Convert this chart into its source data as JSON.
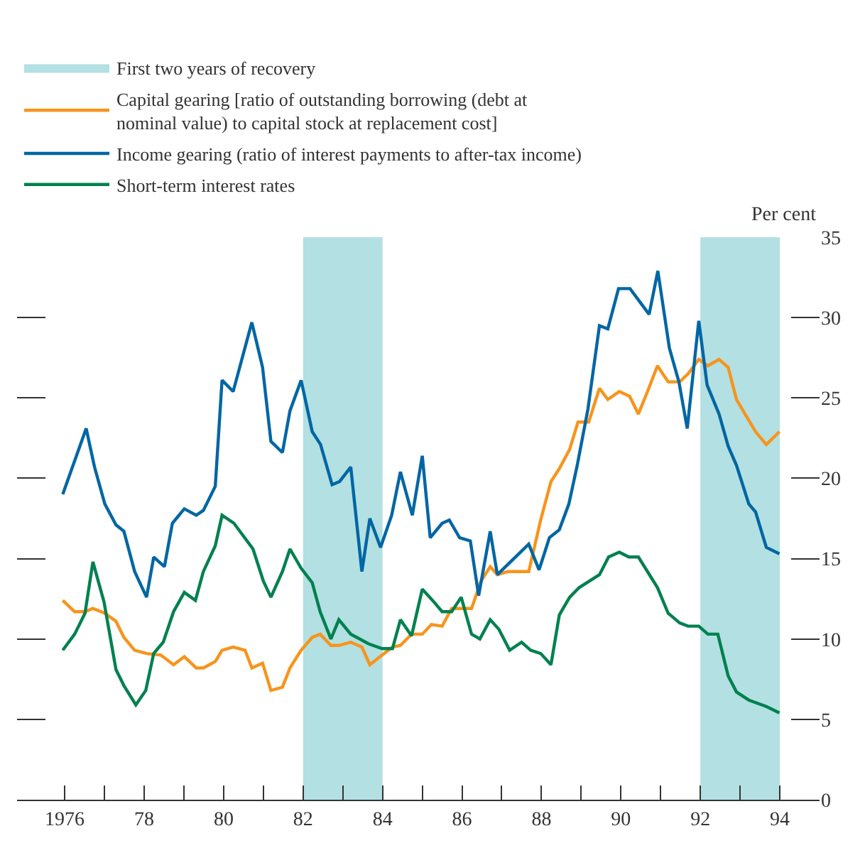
{
  "chart_data": {
    "type": "line",
    "ylabel": "Per cent",
    "legend": "top left",
    "xlim": [
      1974.8,
      1995.0
    ],
    "xticks": [
      {
        "value": 1976,
        "label": "1976"
      },
      {
        "value": 1977,
        "label": null
      },
      {
        "value": 1978,
        "label": "78"
      },
      {
        "value": 1979,
        "label": null
      },
      {
        "value": 1980,
        "label": "80"
      },
      {
        "value": 1981,
        "label": null
      },
      {
        "value": 1982,
        "label": "82"
      },
      {
        "value": 1983,
        "label": null
      },
      {
        "value": 1984,
        "label": "84"
      },
      {
        "value": 1985,
        "label": null
      },
      {
        "value": 1986,
        "label": "86"
      },
      {
        "value": 1987,
        "label": null
      },
      {
        "value": 1988,
        "label": "88"
      },
      {
        "value": 1989,
        "label": null
      },
      {
        "value": 1990,
        "label": "90"
      },
      {
        "value": 1991,
        "label": null
      },
      {
        "value": 1992,
        "label": "92"
      },
      {
        "value": 1993,
        "label": null
      },
      {
        "value": 1994,
        "label": "94"
      }
    ],
    "ylim": [
      0,
      35
    ],
    "yticks": [
      0,
      5,
      10,
      15,
      20,
      25,
      30,
      35
    ],
    "bands": [
      {
        "axis": "x",
        "from": 1982,
        "to": 1984,
        "label": "First two years of recovery",
        "color": "#b3e0e2"
      },
      {
        "axis": "x",
        "from": 1992,
        "to": 1994,
        "color": "#b3e0e2"
      }
    ],
    "series": [
      {
        "name": "Capital gearing [ratio of outstanding borrowing (debt at\nnominal value) to capital stock at replacement cost]",
        "color": "#f7941d",
        "x": [
          1975.95,
          1976.25,
          1976.51,
          1976.71,
          1977.01,
          1977.29,
          1977.49,
          1977.76,
          1978.06,
          1978.42,
          1978.74,
          1979.01,
          1979.31,
          1979.49,
          1979.79,
          1979.96,
          1980.24,
          1980.54,
          1980.71,
          1980.98,
          1981.19,
          1981.48,
          1981.67,
          1981.95,
          1982.23,
          1982.43,
          1982.7,
          1982.9,
          1983.2,
          1983.48,
          1983.68,
          1983.99,
          1984.25,
          1984.45,
          1984.73,
          1985.0,
          1985.23,
          1985.5,
          1985.74,
          1986.24,
          1986.48,
          1986.71,
          1986.89,
          1987.16,
          1987.68,
          1987.98,
          1988.24,
          1988.45,
          1988.71,
          1988.92,
          1989.19,
          1989.46,
          1989.67,
          1989.96,
          1990.22,
          1990.44,
          1990.67,
          1990.92,
          1991.19,
          1991.48,
          1991.69,
          1991.96,
          1992.19,
          1992.47,
          1992.7,
          1992.91,
          1993.22,
          1993.39,
          1993.66,
          1993.99
        ],
        "values": [
          12.4,
          11.7,
          11.7,
          11.9,
          11.6,
          11.1,
          10.1,
          9.3,
          9.1,
          9.0,
          8.4,
          8.9,
          8.2,
          8.2,
          8.6,
          9.3,
          9.5,
          9.3,
          8.2,
          8.5,
          6.8,
          7.0,
          8.2,
          9.3,
          10.1,
          10.3,
          9.6,
          9.6,
          9.8,
          9.5,
          8.4,
          9.0,
          9.5,
          9.6,
          10.3,
          10.3,
          10.9,
          10.8,
          11.9,
          11.9,
          13.6,
          14.5,
          14.0,
          14.2,
          14.2,
          17.4,
          19.8,
          20.6,
          21.8,
          23.5,
          23.5,
          25.6,
          24.9,
          25.4,
          25.1,
          24.0,
          25.4,
          27.0,
          26.0,
          26.0,
          26.5,
          27.4,
          27.0,
          27.4,
          26.9,
          24.9,
          23.6,
          22.9,
          22.1,
          22.9
        ]
      },
      {
        "name": "Income gearing (ratio of interest payments to after-tax income)",
        "color": "#0066a4",
        "x": [
          1975.95,
          1976.54,
          1976.75,
          1977.01,
          1977.29,
          1977.49,
          1977.76,
          1978.06,
          1978.24,
          1978.51,
          1978.71,
          1979.01,
          1979.31,
          1979.49,
          1979.79,
          1979.96,
          1980.24,
          1980.71,
          1980.98,
          1981.19,
          1981.48,
          1981.67,
          1981.95,
          1982.23,
          1982.44,
          1982.73,
          1982.92,
          1983.2,
          1983.48,
          1983.68,
          1983.95,
          1984.23,
          1984.45,
          1984.75,
          1985.0,
          1985.2,
          1985.5,
          1985.68,
          1985.94,
          1986.21,
          1986.42,
          1986.71,
          1986.89,
          1987.68,
          1987.94,
          1988.2,
          1988.45,
          1988.69,
          1988.9,
          1989.17,
          1989.46,
          1989.67,
          1989.94,
          1990.23,
          1990.71,
          1990.93,
          1991.22,
          1991.46,
          1991.67,
          1991.96,
          1992.17,
          1992.47,
          1992.7,
          1992.91,
          1993.22,
          1993.39,
          1993.66,
          1993.99
        ],
        "values": [
          19.0,
          23.1,
          20.7,
          18.4,
          17.1,
          16.7,
          14.2,
          12.6,
          15.1,
          14.5,
          17.2,
          18.1,
          17.7,
          18.0,
          19.5,
          26.1,
          25.4,
          29.7,
          26.9,
          22.3,
          21.6,
          24.2,
          26.1,
          22.9,
          22.1,
          19.6,
          19.8,
          20.7,
          14.2,
          17.5,
          15.7,
          17.7,
          20.4,
          17.7,
          21.4,
          16.3,
          17.2,
          17.4,
          16.3,
          16.1,
          12.7,
          16.7,
          14.0,
          15.9,
          14.3,
          16.3,
          16.8,
          18.4,
          20.8,
          24.3,
          29.5,
          29.3,
          31.8,
          31.8,
          30.2,
          32.9,
          28.1,
          26.0,
          23.1,
          29.8,
          25.8,
          24.0,
          22.0,
          20.8,
          18.4,
          17.9,
          15.7,
          15.3
        ]
      },
      {
        "name": "Short-term interest rates",
        "color": "#00814f",
        "x": [
          1975.95,
          1976.25,
          1976.51,
          1976.71,
          1976.99,
          1977.29,
          1977.49,
          1977.79,
          1978.04,
          1978.24,
          1978.48,
          1978.74,
          1979.01,
          1979.29,
          1979.49,
          1979.79,
          1979.96,
          1980.26,
          1980.74,
          1981.0,
          1981.19,
          1981.48,
          1981.67,
          1981.95,
          1982.23,
          1982.43,
          1982.7,
          1982.9,
          1983.2,
          1983.65,
          1983.99,
          1984.25,
          1984.45,
          1984.73,
          1985.0,
          1985.26,
          1985.5,
          1985.74,
          1985.98,
          1986.24,
          1986.45,
          1986.71,
          1986.93,
          1987.2,
          1987.5,
          1987.73,
          1987.98,
          1988.24,
          1988.45,
          1988.71,
          1988.95,
          1989.46,
          1989.69,
          1989.96,
          1990.2,
          1990.44,
          1990.92,
          1991.19,
          1991.48,
          1991.69,
          1991.96,
          1992.19,
          1992.44,
          1992.7,
          1992.91,
          1993.22,
          1993.66,
          1993.99
        ],
        "values": [
          9.3,
          10.3,
          11.6,
          14.8,
          12.3,
          8.1,
          7.1,
          5.9,
          6.8,
          9.1,
          9.8,
          11.7,
          12.9,
          12.4,
          14.2,
          15.8,
          17.7,
          17.2,
          15.6,
          13.6,
          12.6,
          14.2,
          15.6,
          14.4,
          13.5,
          11.7,
          10.0,
          11.2,
          10.3,
          9.7,
          9.4,
          9.4,
          11.2,
          10.2,
          13.1,
          12.4,
          11.7,
          11.7,
          12.6,
          10.3,
          10.0,
          11.2,
          10.6,
          9.3,
          9.8,
          9.3,
          9.1,
          8.4,
          11.5,
          12.6,
          13.2,
          14.0,
          15.1,
          15.4,
          15.1,
          15.1,
          13.2,
          11.6,
          11.0,
          10.8,
          10.8,
          10.3,
          10.3,
          7.7,
          6.7,
          6.2,
          5.8,
          5.4
        ]
      }
    ]
  }
}
